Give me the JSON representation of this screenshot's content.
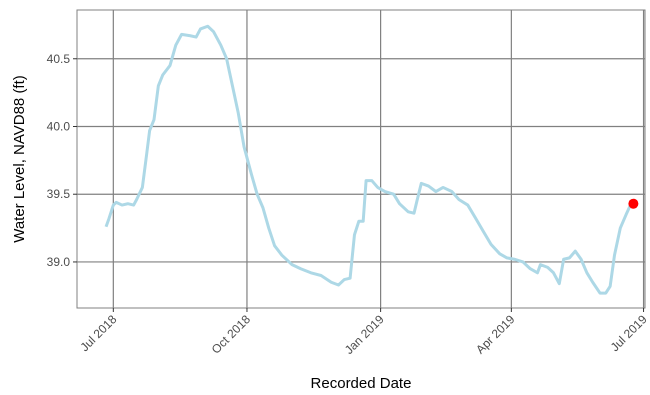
{
  "chart_data": {
    "type": "line",
    "xlabel": "Recorded Date",
    "ylabel": "Water Level, NAVD88 (ft)",
    "color": "#add8e6",
    "grid": true,
    "xlim": [
      "2018-06-06",
      "2019-07-02"
    ],
    "ylim": [
      38.66,
      40.86
    ],
    "xticks": [
      {
        "value": "2018-07-01",
        "label": "Jul 2018"
      },
      {
        "value": "2018-10-01",
        "label": "Oct 2018"
      },
      {
        "value": "2019-01-01",
        "label": "Jan 2019"
      },
      {
        "value": "2019-04-01",
        "label": "Apr 2019"
      },
      {
        "value": "2019-07-01",
        "label": "Jul 2019"
      }
    ],
    "yticks": [
      {
        "value": 39,
        "label": "39.0"
      },
      39.5,
      {
        "value": 40,
        "label": "40.0"
      },
      40.5
    ],
    "x": [
      "2018-06-26",
      "2018-06-28",
      "2018-07-01",
      "2018-07-03",
      "2018-07-07",
      "2018-07-11",
      "2018-07-15",
      "2018-07-17",
      "2018-07-21",
      "2018-07-24",
      "2018-07-26",
      "2018-07-29",
      "2018-08-01",
      "2018-08-04",
      "2018-08-09",
      "2018-08-13",
      "2018-08-17",
      "2018-08-23",
      "2018-08-27",
      "2018-08-30",
      "2018-09-04",
      "2018-09-08",
      "2018-09-13",
      "2018-09-17",
      "2018-09-21",
      "2018-09-25",
      "2018-09-29",
      "2018-10-04",
      "2018-10-08",
      "2018-10-12",
      "2018-10-16",
      "2018-10-20",
      "2018-10-25",
      "2018-11-01",
      "2018-11-07",
      "2018-11-14",
      "2018-11-21",
      "2018-11-28",
      "2018-12-03",
      "2018-12-07",
      "2018-12-11",
      "2018-12-14",
      "2018-12-17",
      "2018-12-20",
      "2018-12-22",
      "2018-12-26",
      "2018-12-30",
      "2019-01-04",
      "2019-01-10",
      "2019-01-14",
      "2019-01-20",
      "2019-01-24",
      "2019-01-26",
      "2019-01-29",
      "2019-02-03",
      "2019-02-08",
      "2019-02-13",
      "2019-02-19",
      "2019-02-24",
      "2019-03-02",
      "2019-03-07",
      "2019-03-13",
      "2019-03-18",
      "2019-03-24",
      "2019-03-29",
      "2019-04-03",
      "2019-04-09",
      "2019-04-14",
      "2019-04-19",
      "2019-04-21",
      "2019-04-26",
      "2019-04-30",
      "2019-05-04",
      "2019-05-07",
      "2019-05-11",
      "2019-05-15",
      "2019-05-19",
      "2019-05-23",
      "2019-05-27",
      "2019-06-01",
      "2019-06-05",
      "2019-06-08",
      "2019-06-11",
      "2019-06-15",
      "2019-06-19",
      "2019-06-22"
    ],
    "values": [
      39.26,
      39.32,
      39.42,
      39.44,
      39.42,
      39.43,
      39.42,
      39.46,
      39.55,
      39.8,
      39.97,
      40.05,
      40.3,
      40.38,
      40.45,
      40.6,
      40.68,
      40.67,
      40.66,
      40.72,
      40.74,
      40.7,
      40.6,
      40.5,
      40.3,
      40.1,
      39.85,
      39.65,
      39.5,
      39.4,
      39.25,
      39.12,
      39.05,
      38.98,
      38.95,
      38.92,
      38.9,
      38.85,
      38.83,
      38.87,
      38.88,
      39.2,
      39.3,
      39.3,
      39.6,
      39.6,
      39.55,
      39.52,
      39.5,
      39.43,
      39.37,
      39.36,
      39.45,
      39.58,
      39.56,
      39.52,
      39.55,
      39.52,
      39.46,
      39.42,
      39.33,
      39.22,
      39.13,
      39.06,
      39.03,
      39.02,
      39.0,
      38.95,
      38.92,
      38.98,
      38.96,
      38.92,
      38.84,
      39.02,
      39.03,
      39.08,
      39.02,
      38.92,
      38.85,
      38.77,
      38.77,
      38.82,
      39.05,
      39.25,
      39.35,
      39.42
    ],
    "highlight_point": {
      "x": "2019-06-24",
      "value": 39.43,
      "color": "#ff0000"
    }
  }
}
